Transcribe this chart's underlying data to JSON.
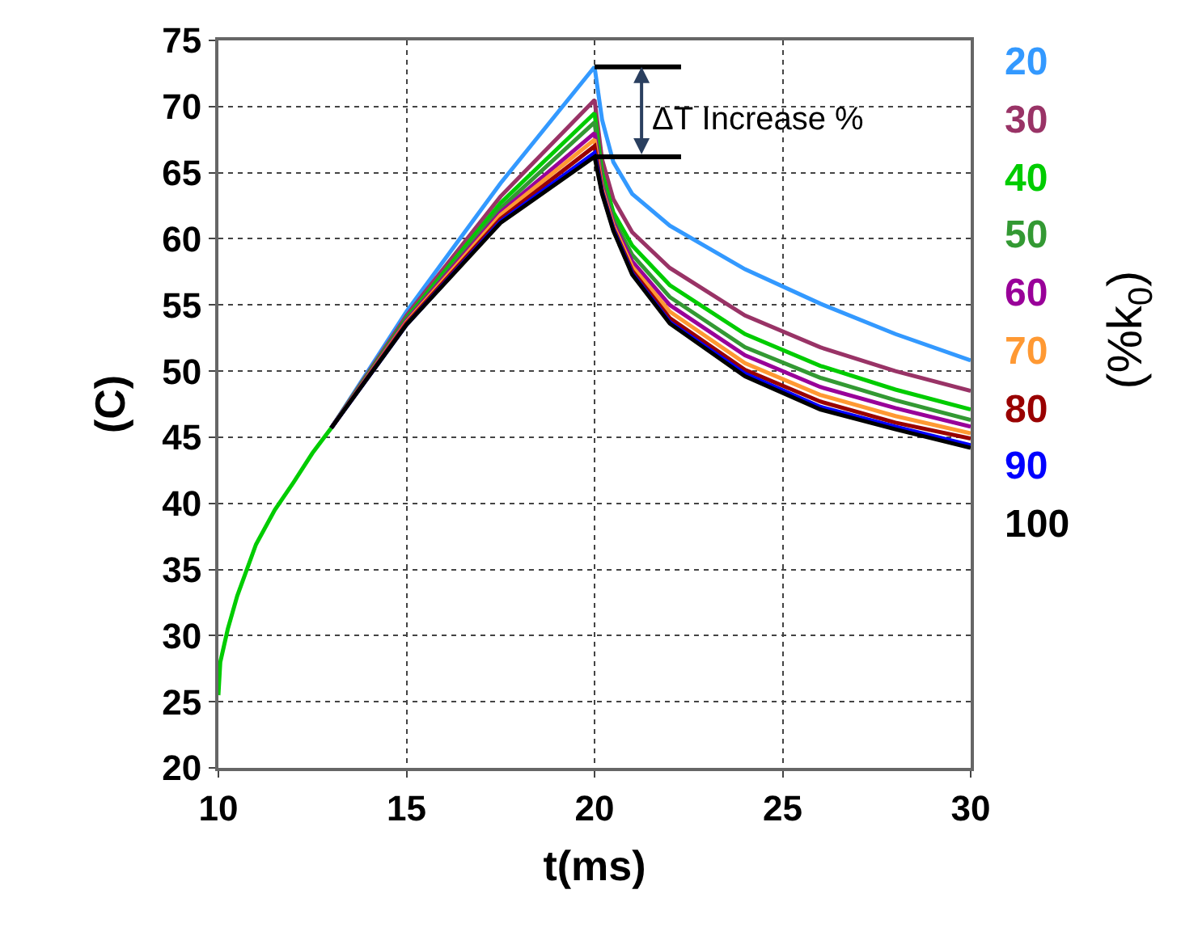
{
  "chart_data": {
    "type": "line",
    "xlabel": "t(ms)",
    "ylabel": "(C)",
    "legend_title": "(%k$_{0}$)",
    "xlim": [
      10,
      30
    ],
    "xticks": [
      10,
      15,
      20,
      25,
      30
    ],
    "ylim": [
      20,
      75
    ],
    "yticks": [
      20,
      25,
      30,
      35,
      40,
      45,
      50,
      55,
      60,
      65,
      70,
      75
    ],
    "grid": true,
    "legend": "right",
    "line_style": "solid",
    "annotations": [
      {
        "text": "ΔT Increase %",
        "x": 20,
        "y": 69
      }
    ],
    "x": [
      10,
      10.05,
      10.25,
      10.5,
      11,
      11.5,
      12,
      12.5,
      13,
      15,
      17.5,
      20,
      20.2,
      20.5,
      21,
      22,
      24,
      26,
      28,
      30
    ],
    "series": [
      {
        "name": "20",
        "color": "#3399ff",
        "values": [
          null,
          null,
          null,
          null,
          null,
          null,
          null,
          null,
          45.7,
          54.5,
          64.2,
          73,
          69.0,
          65.8,
          63.4,
          61.0,
          57.7,
          55.1,
          52.8,
          50.8
        ]
      },
      {
        "name": "30",
        "color": "#993366",
        "values": [
          null,
          null,
          null,
          null,
          null,
          null,
          null,
          null,
          45.7,
          54.2,
          63.2,
          70.5,
          66.0,
          63.0,
          60.5,
          57.8,
          54.2,
          51.8,
          50.0,
          48.5
        ]
      },
      {
        "name": "40",
        "color": "#00cc00",
        "values": [
          25.5,
          28,
          30.5,
          33,
          36.9,
          39.5,
          41.6,
          43.8,
          45.7,
          54.0,
          62.7,
          69.5,
          65.0,
          62.0,
          59.5,
          56.5,
          52.8,
          50.4,
          48.6,
          47.1
        ]
      },
      {
        "name": "50",
        "color": "#339933",
        "values": [
          null,
          null,
          null,
          null,
          null,
          null,
          null,
          null,
          45.7,
          53.9,
          62.3,
          68.8,
          64.5,
          61.5,
          58.8,
          55.6,
          51.8,
          49.5,
          47.8,
          46.3
        ]
      },
      {
        "name": "60",
        "color": "#990099",
        "values": [
          null,
          null,
          null,
          null,
          null,
          null,
          null,
          null,
          45.7,
          53.8,
          62.0,
          68.0,
          64.0,
          61.2,
          58.3,
          55.0,
          51.2,
          48.8,
          47.2,
          45.8
        ]
      },
      {
        "name": "70",
        "color": "#ff9933",
        "values": [
          null,
          null,
          null,
          null,
          null,
          null,
          null,
          null,
          45.7,
          53.7,
          61.8,
          67.5,
          63.8,
          61.0,
          57.9,
          54.5,
          50.6,
          48.2,
          46.6,
          45.3
        ]
      },
      {
        "name": "80",
        "color": "#990000",
        "values": [
          null,
          null,
          null,
          null,
          null,
          null,
          null,
          null,
          45.7,
          53.6,
          61.5,
          67.0,
          63.6,
          60.8,
          57.6,
          54.0,
          50.1,
          47.7,
          46.1,
          44.9
        ]
      },
      {
        "name": "90",
        "color": "#0000ff",
        "values": [
          null,
          null,
          null,
          null,
          null,
          null,
          null,
          null,
          45.7,
          53.5,
          61.3,
          66.5,
          63.5,
          60.7,
          57.4,
          53.7,
          49.8,
          47.3,
          45.8,
          44.4
        ]
      },
      {
        "name": "100",
        "color": "#000000",
        "values": [
          null,
          null,
          null,
          null,
          null,
          null,
          null,
          null,
          45.7,
          53.5,
          61.2,
          66.2,
          63.4,
          60.6,
          57.3,
          53.6,
          49.6,
          47.1,
          45.6,
          44.2
        ]
      }
    ]
  }
}
